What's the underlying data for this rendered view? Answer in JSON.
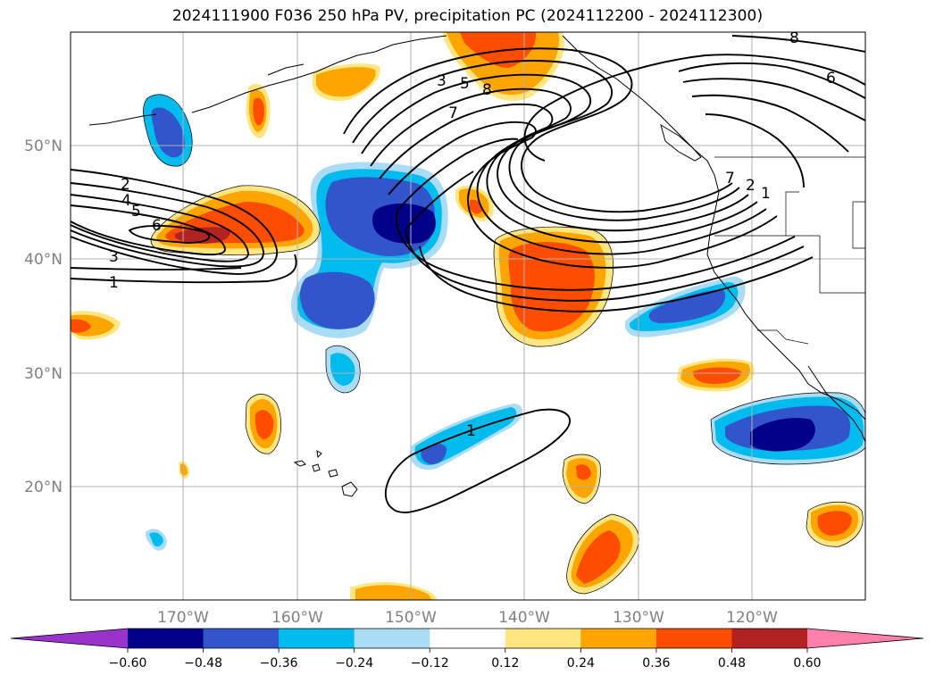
{
  "title": "2024111900 F036 250 hPa PV, precipitation PC (2024112200 - 2024112300)",
  "lat_labels": [
    "50°N",
    "40°N",
    "30°N",
    "20°N"
  ],
  "lon_labels": [
    "170°W",
    "160°W",
    "150°W",
    "140°W",
    "130°W",
    "120°W"
  ],
  "colorbar": {
    "ticks": [
      "−0.60",
      "−0.48",
      "−0.36",
      "−0.24",
      "−0.12",
      "0.12",
      "0.24",
      "0.36",
      "0.48",
      "0.60"
    ],
    "colors": [
      "#9933cc",
      "#000088",
      "#3355cc",
      "#00bbee",
      "#aaddf5",
      "#ffffff",
      "#ffe680",
      "#ffa500",
      "#ff4d00",
      "#b22222",
      "#ff80aa"
    ],
    "extend": "both"
  },
  "contour_labels": [
    "2",
    "4",
    "5",
    "6",
    "3",
    "1",
    "3",
    "5",
    "8",
    "7",
    "8",
    "6",
    "7",
    "2",
    "1",
    "1"
  ],
  "colors": {
    "pv_contour": "#000000",
    "grid": "#b0b0b0",
    "coast": "#000000"
  }
}
